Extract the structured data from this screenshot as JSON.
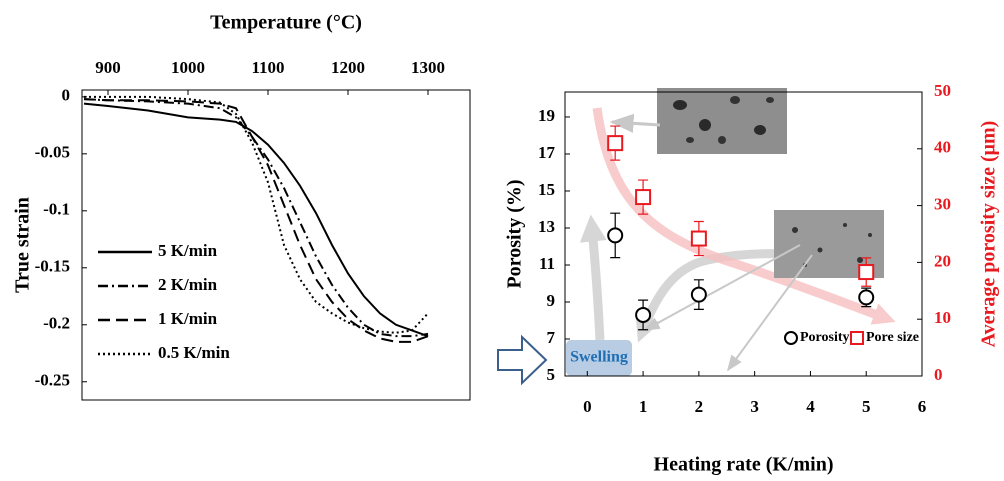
{
  "chart_data": [
    {
      "type": "line",
      "xlabel": "Temperature (°C)",
      "ylabel": "True strain",
      "x": [
        870,
        900,
        950,
        1000,
        1040,
        1060,
        1080,
        1100,
        1120,
        1140,
        1160,
        1180,
        1200,
        1220,
        1240,
        1260,
        1280,
        1300
      ],
      "xlim": [
        867.5,
        1352.5
      ],
      "xticks": [
        900,
        1000,
        1100,
        1200,
        1300
      ],
      "ylim": [
        -0.266,
        0.006
      ],
      "yticks": [
        0,
        -0.05,
        -0.1,
        -0.15,
        -0.2,
        -0.25
      ],
      "series": [
        {
          "name": "5 K/min",
          "color": "#000000",
          "dash": "solid",
          "values": [
            -0.006,
            -0.008,
            -0.012,
            -0.018,
            -0.02,
            -0.022,
            -0.03,
            -0.042,
            -0.058,
            -0.078,
            -0.102,
            -0.13,
            -0.155,
            -0.175,
            -0.19,
            -0.2,
            -0.205,
            -0.21
          ]
        },
        {
          "name": "2 K/min",
          "color": "#000000",
          "dash": "dashdot",
          "values": [
            -0.002,
            -0.003,
            -0.004,
            -0.006,
            -0.01,
            -0.018,
            -0.035,
            -0.055,
            -0.08,
            -0.11,
            -0.14,
            -0.165,
            -0.185,
            -0.2,
            -0.208,
            -0.21,
            -0.21,
            -0.208
          ]
        },
        {
          "name": "1 K/min",
          "color": "#000000",
          "dash": "dash",
          "values": [
            -0.002,
            -0.003,
            -0.003,
            -0.004,
            -0.006,
            -0.01,
            -0.035,
            -0.06,
            -0.095,
            -0.13,
            -0.16,
            -0.18,
            -0.195,
            -0.205,
            -0.212,
            -0.215,
            -0.215,
            -0.21
          ]
        },
        {
          "name": "0.5 K/min",
          "color": "#000000",
          "dash": "dot",
          "values": [
            0,
            0,
            0,
            -0.002,
            -0.005,
            -0.015,
            -0.04,
            -0.075,
            -0.13,
            -0.16,
            -0.18,
            -0.19,
            -0.198,
            -0.203,
            -0.206,
            -0.207,
            -0.205,
            -0.19
          ]
        }
      ]
    },
    {
      "type": "scatter",
      "xlabel": "Heating rate (K/min)",
      "ylabel": "Porosity (%)",
      "y2label": "Average porosity size (μm)",
      "annotation": "Swelling",
      "x": [
        0.5,
        1,
        2,
        5
      ],
      "xlim": [
        -0.4,
        6
      ],
      "xticks": [
        0,
        1,
        2,
        3,
        4,
        5,
        6
      ],
      "ylim": [
        5,
        20.35
      ],
      "yticks": [
        5,
        7,
        9,
        11,
        13,
        15,
        17,
        19
      ],
      "y2lim": [
        0,
        50
      ],
      "y2ticks": [
        0,
        10,
        20,
        30,
        40,
        50
      ],
      "y2color": "#e8191f",
      "series": [
        {
          "name": "Porosity",
          "color": "#000000",
          "marker": "circle",
          "values": [
            12.6,
            8.3,
            9.4,
            9.25
          ],
          "errors": [
            1.2,
            0.8,
            0.8,
            0.5
          ]
        },
        {
          "name": "Pore size",
          "color": "#e8191f",
          "marker": "square",
          "axis": "y2",
          "values": [
            41,
            31.5,
            24.2,
            18.3
          ],
          "errors": [
            3,
            3,
            3,
            2.5
          ]
        }
      ]
    }
  ]
}
